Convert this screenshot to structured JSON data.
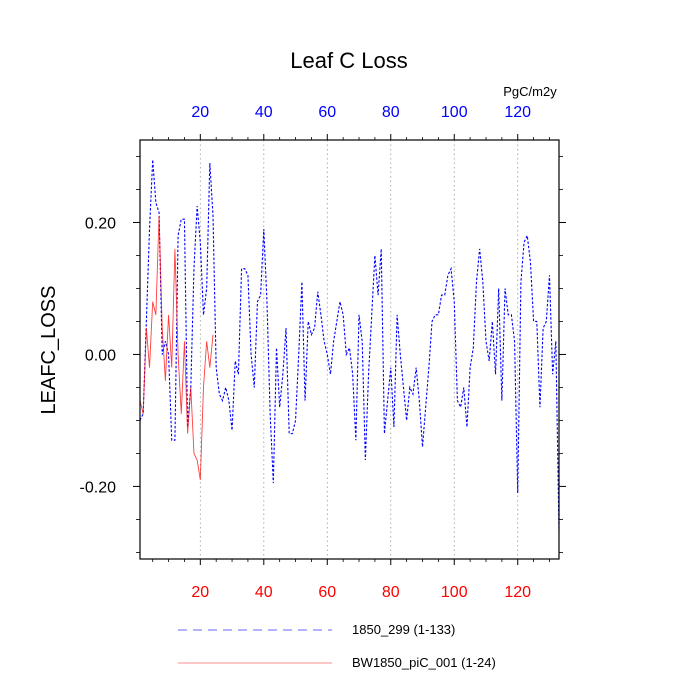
{
  "chart_data": {
    "type": "line",
    "title": "Leaf C Loss",
    "units": "PgC/m2y",
    "ylabel": "LEAFC_LOSS",
    "xlabel": "",
    "xlim": [
      1,
      133
    ],
    "ylim": [
      -0.31,
      0.325
    ],
    "x_ticks": [
      20,
      40,
      60,
      80,
      100,
      120
    ],
    "x_tick_labels": [
      "20",
      "40",
      "60",
      "80",
      "100",
      "120"
    ],
    "y_ticks": [
      0.2,
      0.0,
      -0.2
    ],
    "y_tick_labels": [
      "0.20",
      "0.00",
      "-0.20"
    ],
    "grid": "vertical dotted at x ticks",
    "top_axis_color": "#0000ff",
    "bottom_axis_color": "#ff0000",
    "series": [
      {
        "name": "1850_299 (1-133)",
        "color": "#0000ff",
        "style": "dashed",
        "x_start": 1,
        "values": [
          -0.1,
          -0.09,
          0.05,
          0.19,
          0.295,
          0.23,
          0.215,
          0.0,
          0.02,
          0.0,
          -0.13,
          -0.13,
          0.18,
          0.205,
          0.205,
          -0.11,
          -0.05,
          0.13,
          0.225,
          0.17,
          0.06,
          0.1,
          0.29,
          0.21,
          -0.02,
          -0.06,
          -0.07,
          -0.05,
          -0.07,
          -0.115,
          -0.01,
          -0.03,
          0.13,
          0.13,
          0.12,
          0.0,
          -0.05,
          0.08,
          0.09,
          0.19,
          0.08,
          -0.09,
          -0.195,
          0.01,
          -0.08,
          -0.03,
          0.04,
          -0.12,
          -0.12,
          -0.1,
          0.0,
          0.11,
          -0.07,
          0.05,
          0.03,
          0.04,
          0.095,
          0.06,
          0.02,
          0.0,
          -0.03,
          0.02,
          0.05,
          0.08,
          0.06,
          0.0,
          0.01,
          -0.03,
          -0.13,
          0.06,
          0.02,
          -0.16,
          -0.03,
          0.06,
          0.15,
          0.09,
          0.16,
          -0.12,
          -0.07,
          -0.02,
          -0.11,
          0.06,
          0.0,
          -0.05,
          -0.1,
          -0.05,
          -0.06,
          -0.02,
          -0.07,
          -0.14,
          -0.08,
          -0.02,
          0.05,
          0.06,
          0.06,
          0.09,
          0.09,
          0.12,
          0.13,
          0.08,
          -0.07,
          -0.08,
          -0.05,
          -0.11,
          -0.02,
          0.01,
          0.11,
          0.16,
          0.11,
          0.02,
          -0.01,
          0.05,
          -0.03,
          0.1,
          -0.07,
          0.1,
          0.06,
          0.06,
          0.02,
          -0.21,
          0.11,
          0.17,
          0.18,
          0.14,
          0.05,
          0.05,
          -0.08,
          0.04,
          0.05,
          0.12,
          -0.03,
          0.02,
          -0.27
        ]
      },
      {
        "name": "BW1850_piC_001 (1-24)",
        "color": "#ff0000",
        "style": "solid",
        "x_start": 1,
        "values": [
          -0.07,
          -0.09,
          0.04,
          -0.02,
          0.08,
          0.06,
          0.21,
          0.04,
          -0.04,
          0.06,
          -0.02,
          0.16,
          0.0,
          -0.09,
          0.02,
          -0.12,
          -0.05,
          -0.15,
          -0.16,
          -0.19,
          -0.05,
          0.02,
          -0.02,
          0.03
        ]
      }
    ],
    "legend_placement": "bottom"
  }
}
